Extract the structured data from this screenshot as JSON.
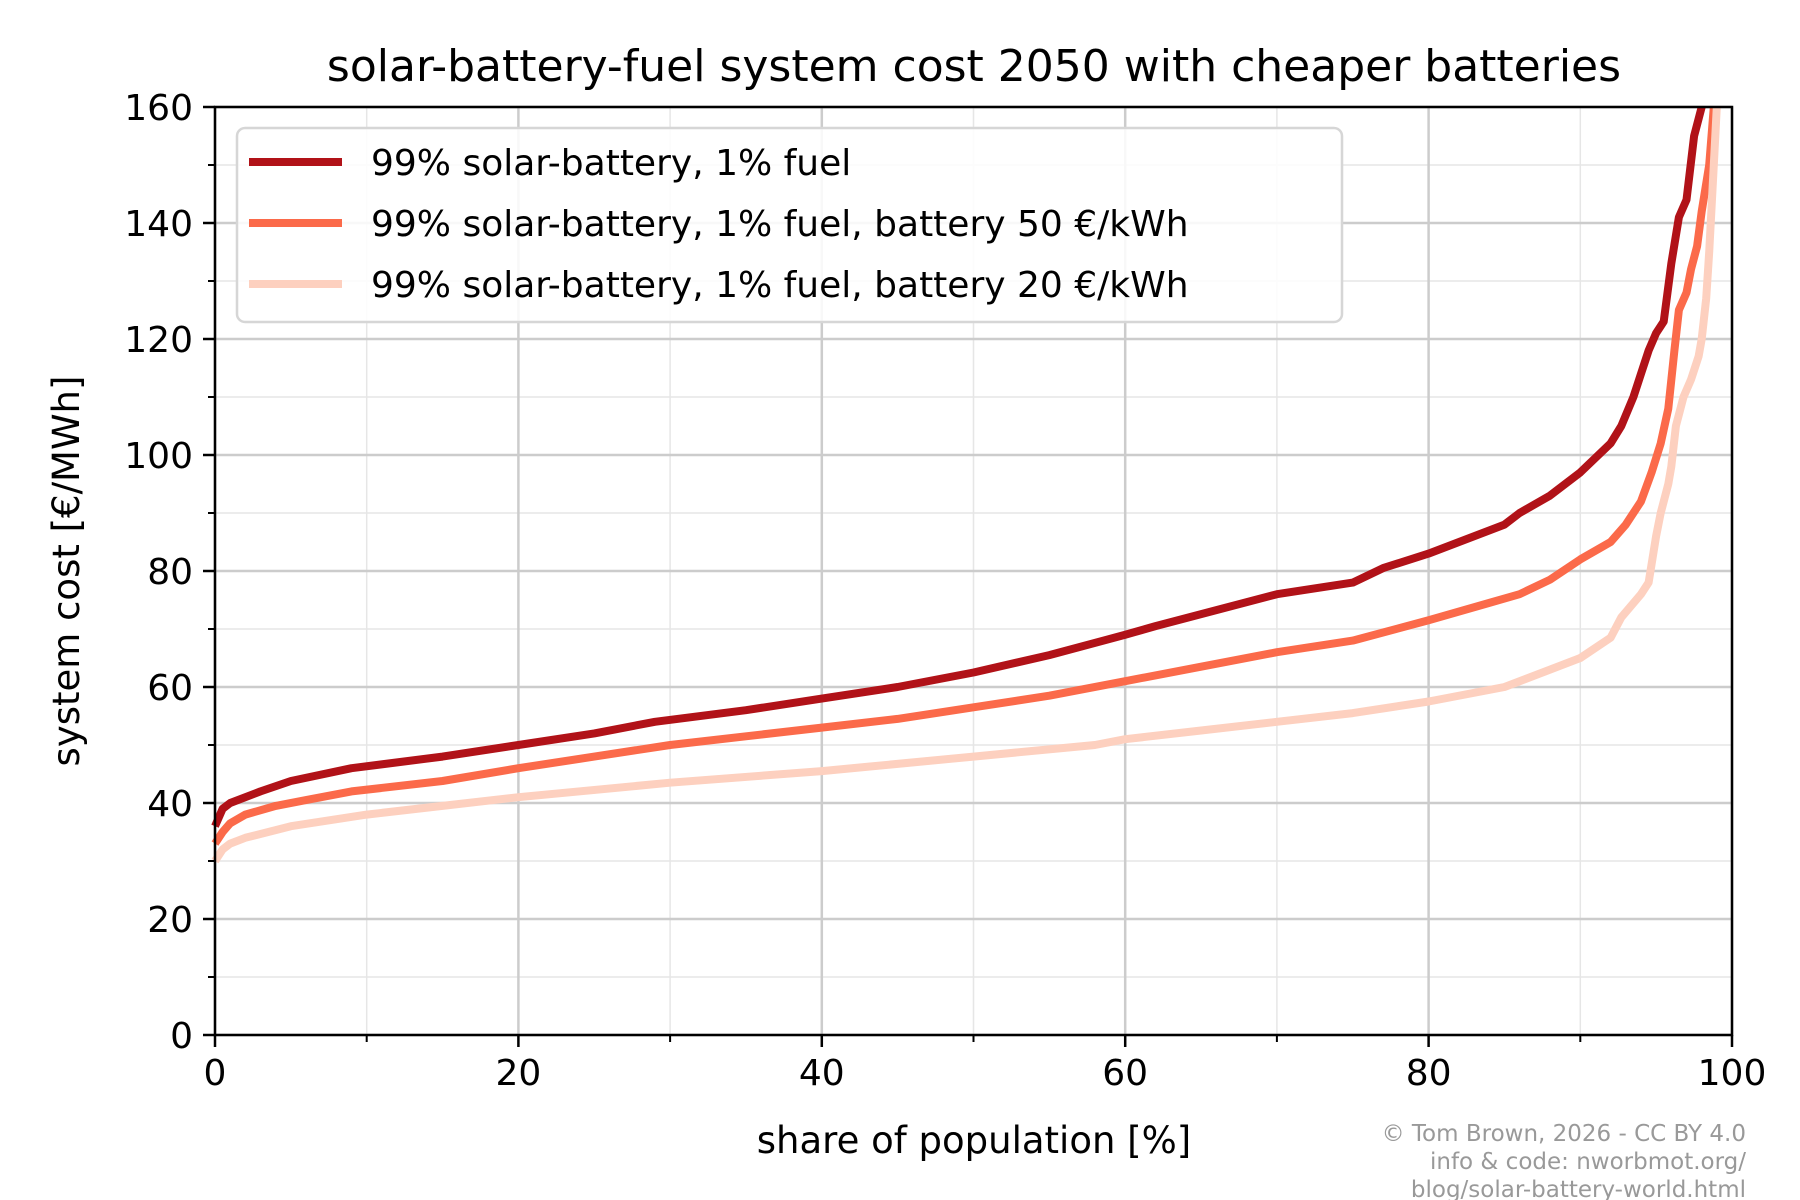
{
  "chart_data": {
    "type": "line",
    "title": "solar-battery-fuel system cost 2050 with cheaper batteries",
    "xlabel": "share of population [%]",
    "ylabel": "system cost [€/MWh]",
    "xlim": [
      0,
      100
    ],
    "ylim": [
      0,
      160
    ],
    "xticks": [
      0,
      20,
      40,
      60,
      80,
      100
    ],
    "yticks": [
      0,
      20,
      40,
      60,
      80,
      100,
      120,
      140,
      160
    ],
    "grid": true,
    "legend_position": "top-left",
    "series": [
      {
        "name": "99% solar-battery, 1% fuel",
        "color": "#b11218",
        "x": [
          0,
          0.5,
          1,
          3,
          5,
          9,
          15,
          20,
          25,
          29,
          35,
          40,
          45,
          50,
          55,
          60,
          62,
          70,
          75,
          77,
          80,
          85,
          86,
          88,
          90,
          92,
          92.7,
          93.5,
          94,
          94.5,
          95,
          95.5,
          96,
          96.5,
          97,
          97.5,
          98
        ],
        "y": [
          36,
          39,
          40,
          42,
          43.8,
          46,
          48,
          50,
          52,
          54,
          56,
          58,
          60,
          62.5,
          65.5,
          69,
          70.5,
          76,
          78,
          80.5,
          83,
          88,
          90,
          93,
          97,
          102,
          105,
          110,
          114,
          118,
          121,
          123,
          133,
          141,
          144,
          155,
          160
        ]
      },
      {
        "name": "99% solar-battery, 1% fuel, battery 50 €/kWh",
        "color": "#fb6a4a",
        "x": [
          0,
          0.5,
          1,
          2,
          4,
          6,
          9,
          15,
          20,
          25,
          30,
          35,
          40,
          45,
          50,
          55,
          60,
          65,
          70,
          75,
          80,
          84,
          86,
          88,
          90,
          92,
          93,
          94,
          94.7,
          95.3,
          95.8,
          96.2,
          96.5,
          97,
          97.3,
          97.7,
          98,
          98.5,
          98.8
        ],
        "y": [
          33,
          35,
          36.5,
          38,
          39.5,
          40.5,
          42,
          43.8,
          46,
          48,
          50,
          51.5,
          53,
          54.5,
          56.5,
          58.5,
          61,
          63.5,
          66,
          68,
          71.5,
          74.5,
          76,
          78.5,
          82,
          85,
          88,
          92,
          97,
          102,
          108,
          118,
          125,
          128,
          132,
          136,
          142,
          150,
          160
        ]
      },
      {
        "name": "99% solar-battery, 1% fuel, battery 20 €/kWh",
        "color": "#fdd0bf",
        "x": [
          0,
          0.5,
          1,
          2,
          5,
          10,
          15,
          20,
          30,
          40,
          50,
          58,
          60,
          65,
          70,
          75,
          80,
          85,
          88,
          90,
          92,
          92.7,
          94,
          94.5,
          95,
          95.3,
          95.8,
          96,
          96.3,
          96.8,
          97.3,
          97.8,
          98,
          98.3,
          98.5,
          98.8,
          99
        ],
        "y": [
          30,
          32,
          33,
          34,
          36,
          38,
          39.5,
          41,
          43.5,
          45.5,
          48,
          50,
          51,
          52.5,
          54,
          55.5,
          57.5,
          60,
          63,
          65,
          68.5,
          72,
          76,
          78,
          86,
          90,
          95,
          98,
          105,
          110,
          113,
          117,
          120,
          127,
          135,
          150,
          160
        ]
      }
    ],
    "annotation": [
      "© Tom Brown, 2026 - CC BY 4.0",
      "info & code: nworbmot.org/",
      "blog/solar-battery-world.html"
    ]
  }
}
